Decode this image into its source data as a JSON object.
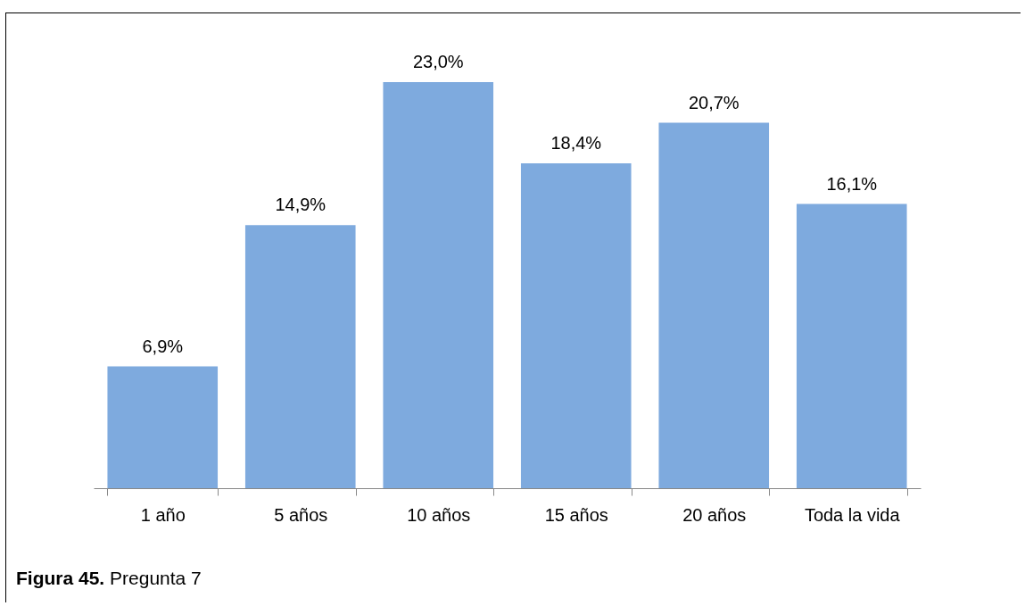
{
  "chart_data": {
    "type": "bar",
    "categories": [
      "1 año",
      "5 años",
      "10 años",
      "15 años",
      "20 años",
      "Toda la vida"
    ],
    "values": [
      6.9,
      14.9,
      23.0,
      18.4,
      20.7,
      16.1
    ],
    "value_labels": [
      "6,9%",
      "14,9%",
      "23,0%",
      "18,4%",
      "20,7%",
      "16,1%"
    ],
    "color": "#7eaade",
    "grid": false,
    "annotations": [
      "Figura 45. Pregunta 7"
    ]
  }
}
